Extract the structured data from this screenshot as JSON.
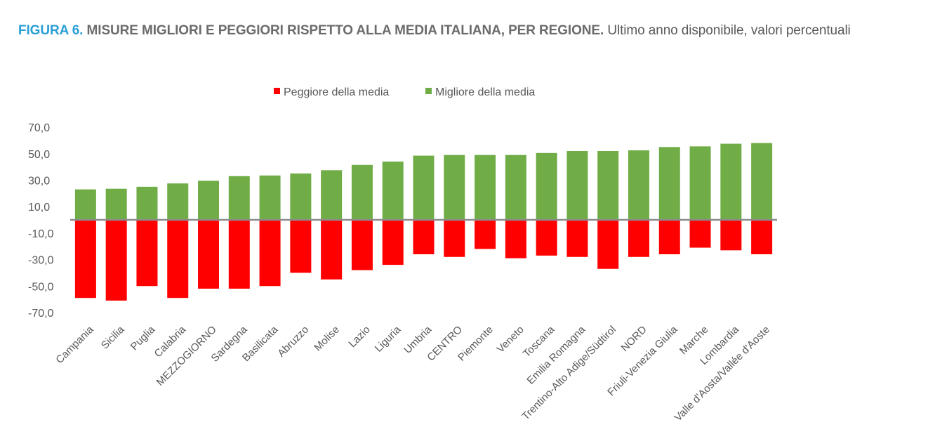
{
  "header": {
    "label": "FIGURA 6.",
    "title": "MISURE MIGLIORI E PEGGIORI RISPETTO ALLA MEDIA ITALIANA, PER REGIONE.",
    "subtitle": "Ultimo anno disponibile, valori percentuali"
  },
  "chart_data": {
    "type": "bar",
    "stacked": true,
    "legend_position": "top",
    "grid": false,
    "ylim": [
      -70,
      70
    ],
    "yticks": [
      "70,0",
      "50,0",
      "30,0",
      "10,0",
      "-10,0",
      "-30,0",
      "-50,0",
      "-70,0"
    ],
    "categories": [
      "Campania",
      "Sicilia",
      "Puglia",
      "Calabria",
      "MEZZOGIORNO",
      "Sardegna",
      "Basilicata",
      "Abruzzo",
      "Molise",
      "Lazio",
      "Liguria",
      "Umbria",
      "CENTRO",
      "Piemonte",
      "Veneto",
      "Toscana",
      "Emilia Romagna",
      "Trentino-Alto Adige/Südtirol",
      "NORD",
      "Friuli-Venezia Giulia",
      "Marche",
      "Lombardia",
      "Valle d'Aosta/Vallée d'Aoste"
    ],
    "series": [
      {
        "name": "Peggiore della media",
        "color": "#ff0000",
        "values": [
          -59.0,
          -61.0,
          -50.0,
          -59.0,
          -52.0,
          -52.0,
          -50.0,
          -40.0,
          -45.0,
          -38.0,
          -34.0,
          -26.0,
          -28.0,
          -22.0,
          -29.0,
          -27.0,
          -28.0,
          -37.0,
          -28.0,
          -26.0,
          -21.0,
          -23.0,
          -26.0
        ]
      },
      {
        "name": "Migliore della media",
        "color": "#70ad47",
        "values": [
          23.0,
          23.5,
          25.0,
          27.5,
          29.5,
          33.0,
          33.5,
          35.0,
          37.5,
          41.5,
          44.0,
          48.5,
          49.0,
          49.0,
          49.0,
          50.5,
          52.0,
          52.0,
          52.5,
          55.0,
          55.5,
          57.5,
          58.0
        ]
      }
    ]
  }
}
